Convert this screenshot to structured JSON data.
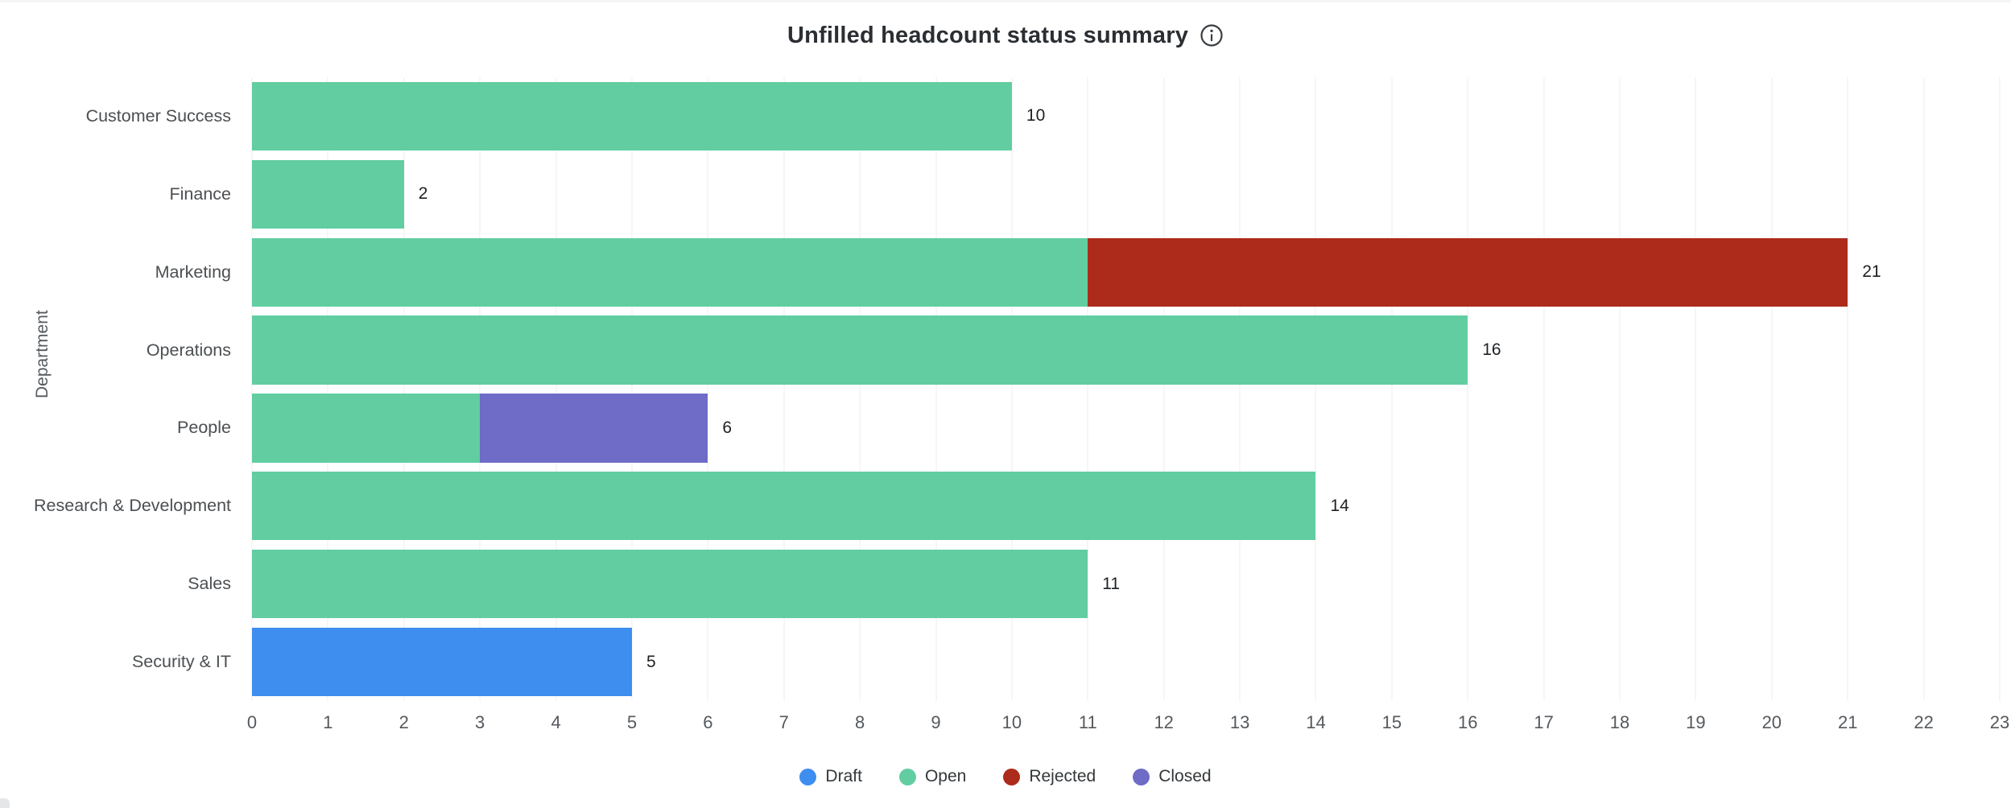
{
  "header": {
    "title": "Unfilled headcount status summary"
  },
  "chart_data": {
    "type": "bar",
    "orientation": "horizontal",
    "stacked": true,
    "title": "Unfilled headcount status summary",
    "xlabel": "",
    "ylabel": "Department",
    "xlim": [
      0,
      23
    ],
    "xticks": [
      0,
      1,
      2,
      3,
      4,
      5,
      6,
      7,
      8,
      9,
      10,
      11,
      12,
      13,
      14,
      15,
      16,
      17,
      18,
      19,
      20,
      21,
      22,
      23
    ],
    "grid": true,
    "legend_position": "bottom",
    "categories": [
      "Customer Success",
      "Finance",
      "Marketing",
      "Operations",
      "People",
      "Research & Development",
      "Sales",
      "Security & IT"
    ],
    "series": [
      {
        "name": "Draft",
        "color": "#3E8EF0",
        "values": [
          0,
          0,
          0,
          0,
          0,
          0,
          0,
          5
        ]
      },
      {
        "name": "Open",
        "color": "#62CDA1",
        "values": [
          10,
          2,
          11,
          16,
          3,
          14,
          11,
          0
        ]
      },
      {
        "name": "Rejected",
        "color": "#AD2B1B",
        "values": [
          0,
          0,
          10,
          0,
          0,
          0,
          0,
          0
        ]
      },
      {
        "name": "Closed",
        "color": "#6E6CC7",
        "values": [
          0,
          0,
          0,
          0,
          3,
          0,
          0,
          0
        ]
      }
    ],
    "totals": [
      10,
      2,
      21,
      16,
      6,
      14,
      11,
      5
    ],
    "bar_labels": [
      "10",
      "2",
      "21",
      "16",
      "6",
      "14",
      "11",
      "5"
    ]
  },
  "legend": {
    "items": [
      {
        "label": "Draft",
        "color": "#3E8EF0"
      },
      {
        "label": "Open",
        "color": "#62CDA1"
      },
      {
        "label": "Rejected",
        "color": "#AD2B1B"
      },
      {
        "label": "Closed",
        "color": "#6E6CC7"
      }
    ]
  },
  "icons": {
    "info": "info-icon"
  }
}
